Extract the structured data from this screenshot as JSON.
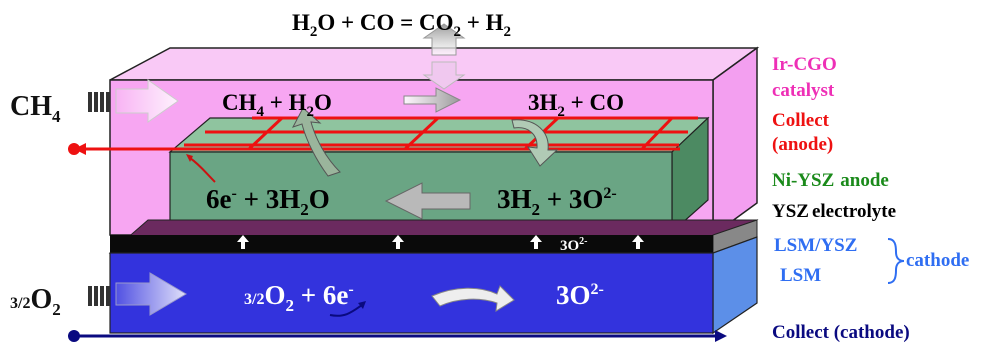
{
  "equations": {
    "shift": {
      "a": "H",
      "a_sub": "2",
      "b": "O + CO = CO",
      "b_sub": "2",
      "c": " + H",
      "c_sub": "2"
    },
    "reform_left": {
      "a": "CH",
      "a_sub": "4",
      "b": " + H",
      "b_sub": "2",
      "c": "O"
    },
    "reform_right": {
      "a": "3H",
      "a_sub": "2",
      "b": " + CO"
    },
    "anode_left": {
      "a": "6e",
      "a_sup": "-",
      "b": " + 3H",
      "b_sub": "2",
      "c": "O"
    },
    "anode_right": {
      "a": "3H",
      "a_sub": "2",
      "b": " + 3O",
      "b_sup": "2-"
    },
    "electrolyte_ion": {
      "a": "3O",
      "a_sup": "2-"
    },
    "cathode_left": {
      "frac": "3/2",
      "a": "O",
      "a_sub": "2",
      "b": " + 6e",
      "b_sup": "-"
    },
    "cathode_right": {
      "a": "3O",
      "a_sup": "2-"
    }
  },
  "inputs": {
    "ch4": {
      "a": "CH",
      "a_sub": "4"
    },
    "o2": {
      "frac": "3/2",
      "a": "O",
      "a_sub": "2"
    }
  },
  "labels": {
    "catalyst_1": "Ir-CGO",
    "catalyst_2": "catalyst",
    "collect_anode_1": "Collect",
    "collect_anode_2": "(anode)",
    "anode_a": "Ni-YSZ",
    "anode_b": "anode",
    "electrolyte_a": "YSZ",
    "electrolyte_b": "electrolyte",
    "lsm_ysz": "LSM/YSZ",
    "lsm": "LSM",
    "cathode": "cathode",
    "collect_cathode": "Collect (cathode)"
  },
  "colors": {
    "catalyst": "#f7a6f2",
    "catalyst_label": "#ee2fb6",
    "anode": "#6aa584",
    "anode_label": "#1a8a1a",
    "collector_red": "#ee1111",
    "electrolyte": "#0a0a0a",
    "cathode": "#3333dd",
    "cathode_label": "#2f6ef2",
    "cathode_collector": "#0a0a80"
  }
}
